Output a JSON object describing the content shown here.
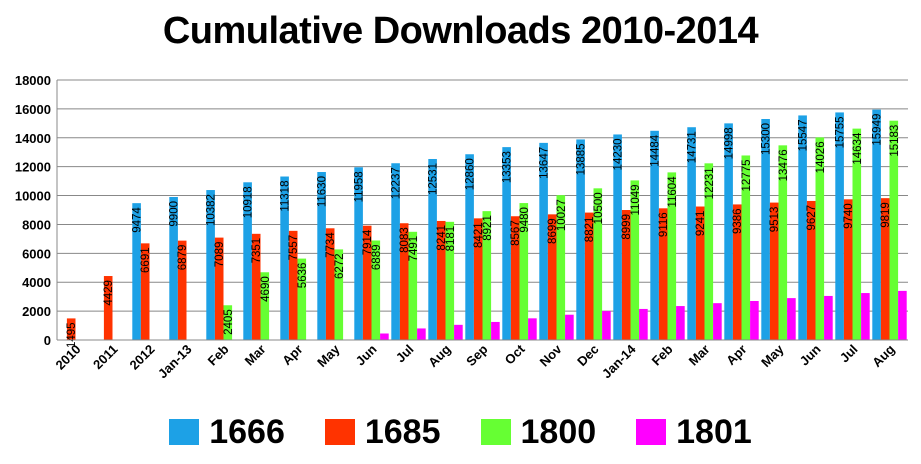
{
  "chart_data": {
    "type": "bar",
    "title": "Cumulative Downloads 2010-2014",
    "xlabel": "",
    "ylabel": "",
    "ylim": [
      0,
      18000
    ],
    "yticks": [
      "0",
      "2000",
      "4000",
      "6000",
      "8000",
      "10000",
      "12000",
      "14000",
      "16000",
      "18000"
    ],
    "grid": true,
    "legend_position": "bottom",
    "categories": [
      "2010",
      "2011",
      "2012",
      "Jan-13",
      "Feb",
      "Mar",
      "Apr",
      "May",
      "Jun",
      "Jul",
      "Aug",
      "Sep",
      "Oct",
      "Nov",
      "Dec",
      "Jan-14",
      "Feb",
      "Mar",
      "Apr",
      "May",
      "Jun",
      "Jul",
      "Aug"
    ],
    "series": [
      {
        "name": "1666",
        "color": "#1da1e6",
        "values": [
          null,
          null,
          9474,
          9900,
          10382,
          10918,
          11318,
          11630,
          11958,
          12237,
          12531,
          12860,
          13353,
          13647,
          13885,
          14230,
          14484,
          14731,
          14998,
          15300,
          15547,
          15755,
          15949
        ],
        "labels": [
          "",
          "",
          "9474",
          "9900",
          "10382",
          "10918",
          "11318",
          "11630",
          "11958",
          "12237",
          "12531",
          "12860",
          "13353",
          "13647",
          "13885",
          "14230",
          "14484",
          "14731",
          "14998",
          "15300",
          "15547",
          "15755",
          "15949"
        ]
      },
      {
        "name": "1685",
        "color": "#ff3300",
        "values": [
          1495,
          4429,
          6691,
          6879,
          7089,
          7351,
          7557,
          7734,
          7914,
          8083,
          8241,
          8421,
          8567,
          8699,
          8821,
          8999,
          9116,
          9241,
          9386,
          9513,
          9627,
          9740,
          9819
        ],
        "labels": [
          "1495",
          "4429",
          "6691",
          "6879",
          "7089",
          "7351",
          "7557",
          "7734",
          "7914",
          "8083",
          "8241",
          "8421",
          "8567",
          "8699",
          "8821",
          "8999",
          "9116",
          "9241",
          "9386",
          "9513",
          "9627",
          "9740",
          "9819"
        ]
      },
      {
        "name": "1800",
        "color": "#66ff33",
        "values": [
          null,
          null,
          null,
          null,
          2405,
          4690,
          5636,
          6272,
          6889,
          7491,
          8181,
          8921,
          9480,
          10027,
          10500,
          11049,
          11604,
          12231,
          12775,
          13476,
          14026,
          14634,
          15183
        ],
        "labels": [
          "",
          "",
          "",
          "",
          "2405",
          "4690",
          "5636",
          "6272",
          "6889",
          "7491",
          "8181",
          "8921",
          "9480",
          "10027",
          "10500",
          "11049",
          "11604",
          "12231",
          "12775",
          "13476",
          "14026",
          "14634",
          "15183"
        ]
      },
      {
        "name": "1801",
        "color": "#ff00ff",
        "values": [
          null,
          null,
          null,
          null,
          null,
          null,
          null,
          null,
          450,
          800,
          1050,
          1250,
          1500,
          1750,
          2000,
          2150,
          2350,
          2550,
          2700,
          2900,
          3050,
          3250,
          3400
        ],
        "labels": [
          "",
          "",
          "",
          "",
          "",
          "",
          "",
          "",
          "",
          "",
          "",
          "",
          "",
          "",
          "",
          "",
          "",
          "",
          "",
          "",
          "",
          "",
          ""
        ]
      }
    ]
  }
}
